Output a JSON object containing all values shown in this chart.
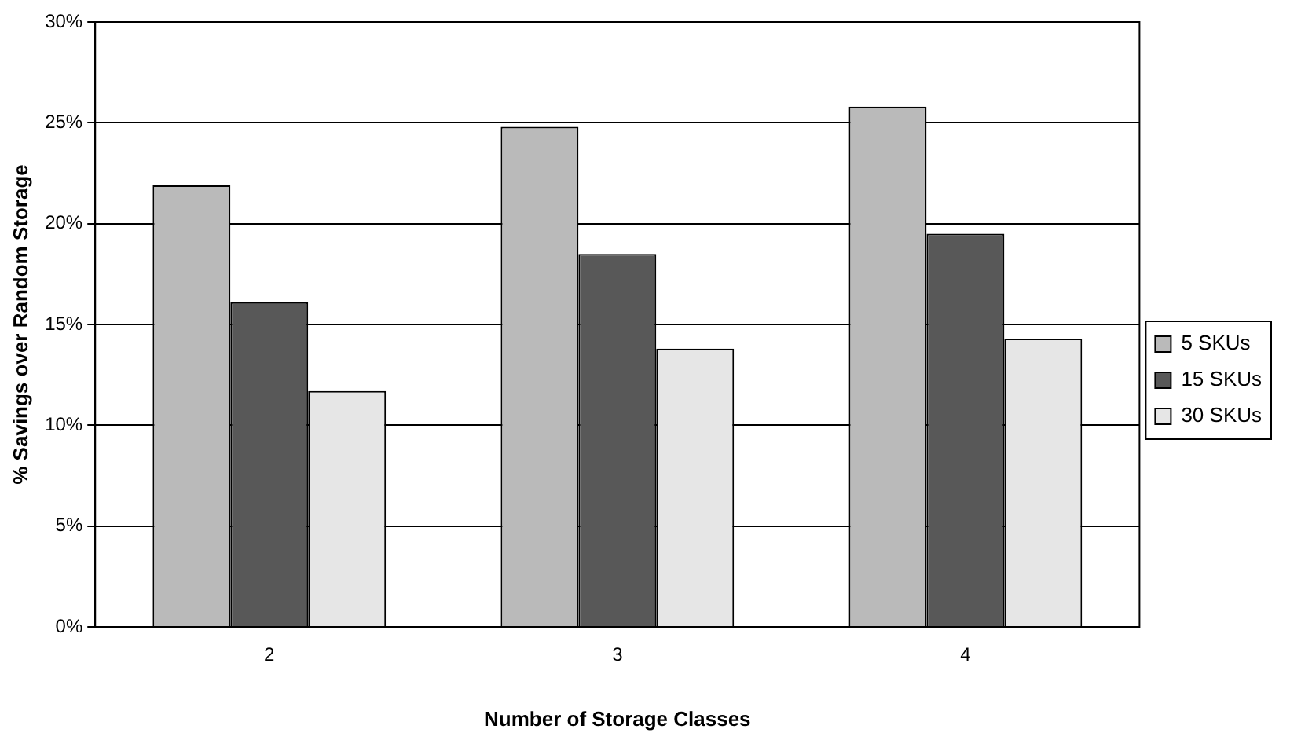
{
  "chart_data": {
    "type": "bar",
    "xlabel": "Number of Storage Classes",
    "ylabel": "% Savings over Random Storage",
    "categories": [
      "2",
      "3",
      "4"
    ],
    "series": [
      {
        "name": "5 SKUs",
        "color": "#bababa",
        "values": [
          21.9,
          24.8,
          25.8
        ]
      },
      {
        "name": "15 SKUs",
        "color": "#585858",
        "values": [
          16.1,
          18.5,
          19.5
        ]
      },
      {
        "name": "30 SKUs",
        "color": "#e6e6e6",
        "values": [
          11.7,
          13.8,
          14.3
        ]
      }
    ],
    "ylim": [
      0,
      30
    ],
    "yticks": [
      {
        "value": 0,
        "label": "0%"
      },
      {
        "value": 5,
        "label": "5%"
      },
      {
        "value": 10,
        "label": "10%"
      },
      {
        "value": 15,
        "label": "15%"
      },
      {
        "value": 20,
        "label": "20%"
      },
      {
        "value": 25,
        "label": "25%"
      },
      {
        "value": 30,
        "label": "30%"
      }
    ],
    "grid": "y",
    "legend": "right"
  }
}
